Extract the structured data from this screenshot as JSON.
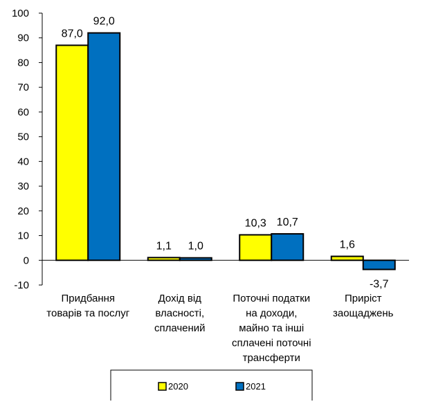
{
  "chart_data": {
    "type": "bar",
    "categories": [
      [
        "Придбання",
        "товарів та послуг"
      ],
      [
        "Дохід від",
        "власності,",
        "сплачений"
      ],
      [
        "Поточні податки",
        "на доходи,",
        "майно та інші",
        "сплачені поточні",
        "трансферти"
      ],
      [
        "Приріст",
        "заощаджень"
      ]
    ],
    "series": [
      {
        "name": "2020",
        "color": "#FFFF00",
        "values": [
          87.0,
          1.1,
          10.3,
          1.6
        ],
        "labels": [
          "87,0",
          "1,1",
          "10,3",
          "1,6"
        ]
      },
      {
        "name": "2021",
        "color": "#0070C0",
        "values": [
          92.0,
          1.0,
          10.7,
          -3.7
        ],
        "labels": [
          "92,0",
          "1,0",
          "10,7",
          "-3,7"
        ]
      }
    ],
    "ylim": [
      -10,
      100
    ],
    "yticks": [
      -10,
      0,
      10,
      20,
      30,
      40,
      50,
      60,
      70,
      80,
      90,
      100
    ],
    "grid": false,
    "legend_position": "bottom"
  }
}
